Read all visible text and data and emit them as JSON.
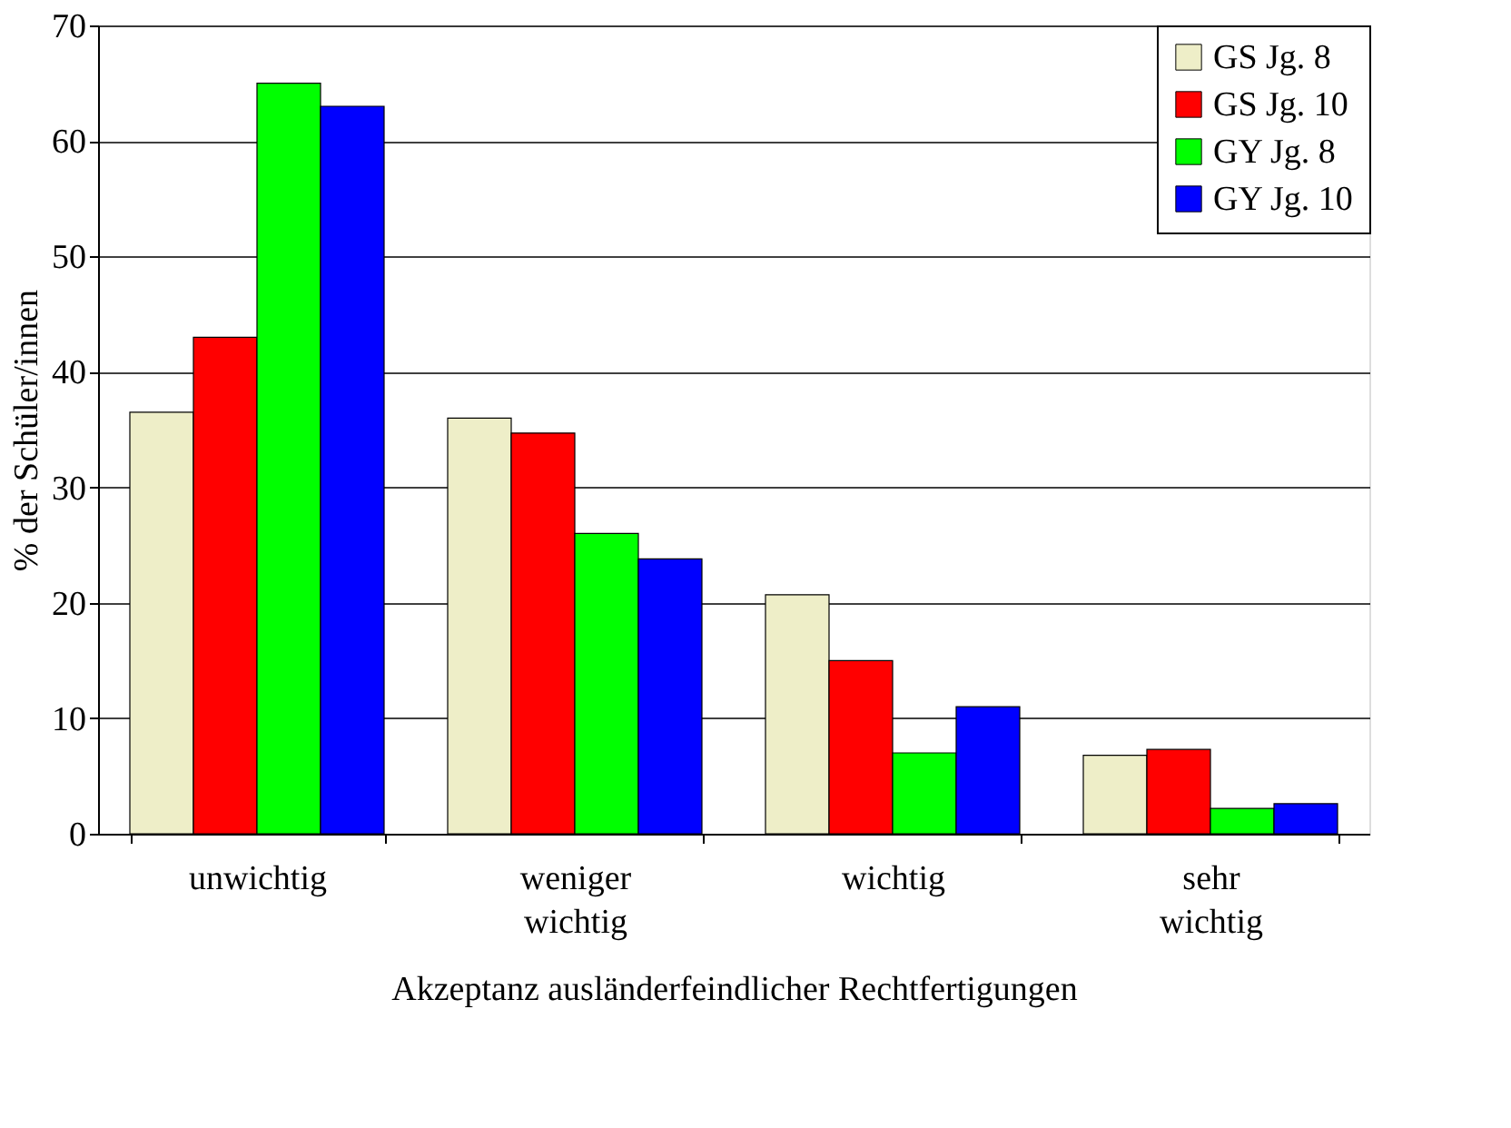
{
  "chart_data": {
    "type": "bar",
    "xlabel": "Akzeptanz ausländerfeindlicher Rechtfertigungen",
    "ylabel": "% der Schüler/innen",
    "categories": [
      "unwichtig",
      "weniger wichtig",
      "wichtig",
      "sehr wichtig"
    ],
    "series": [
      {
        "name": "GS Jg. 8",
        "color": "#eeeec8",
        "values": [
          36.5,
          36,
          20.7,
          6.8
        ]
      },
      {
        "name": "GS Jg. 10",
        "color": "#ff0000",
        "values": [
          43,
          34.7,
          15,
          7.3
        ]
      },
      {
        "name": "GY Jg. 8",
        "color": "#00ff00",
        "values": [
          65,
          26,
          7,
          2.2
        ]
      },
      {
        "name": "GY Jg. 10",
        "color": "#0000ff",
        "values": [
          63,
          23.8,
          11,
          2.6
        ]
      }
    ],
    "ylim": [
      0,
      70
    ],
    "yticks": [
      0,
      10,
      20,
      30,
      40,
      50,
      60,
      70
    ],
    "grid": "y",
    "legend": "top right"
  }
}
